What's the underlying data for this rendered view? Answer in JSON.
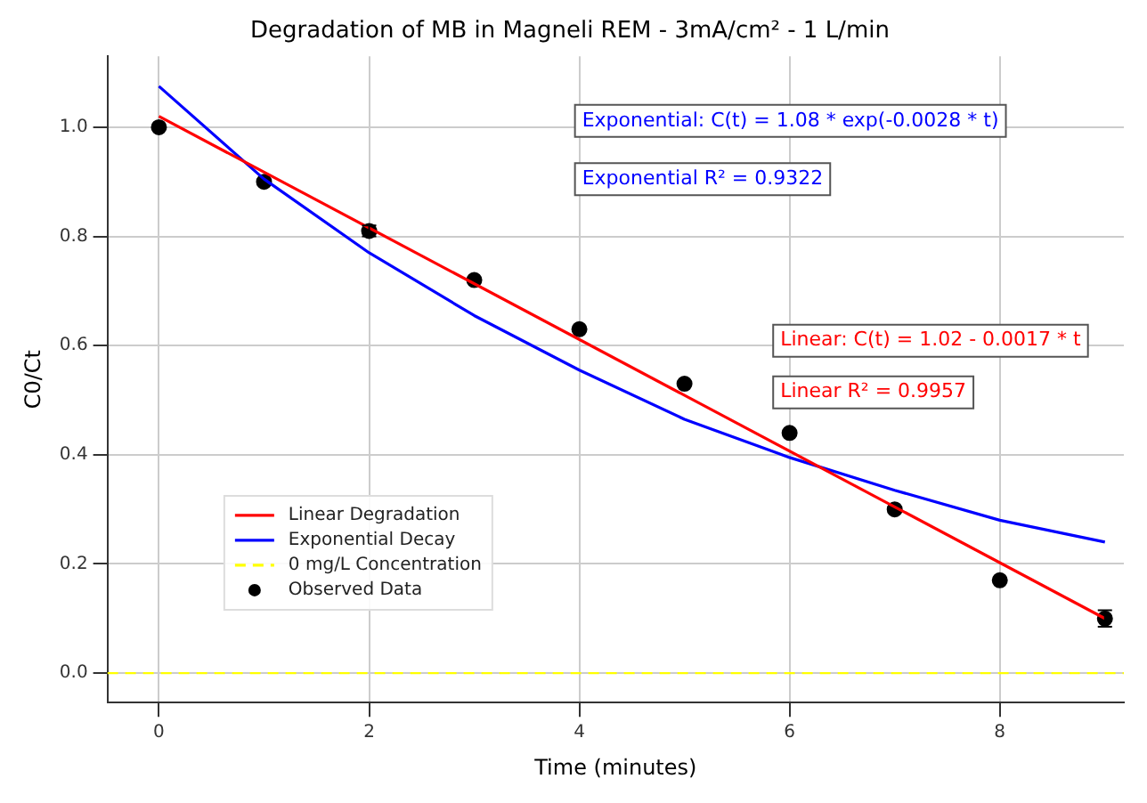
{
  "chart_data": {
    "type": "line",
    "title": "Degradation of MB in Magneli REM - 3mA/cm² - 1 L/min",
    "xlabel": "Time (minutes)",
    "ylabel": "C0/Ct",
    "xlim": [
      -0.49,
      9.18
    ],
    "ylim": [
      -0.054,
      1.13
    ],
    "xticks": [
      0,
      2,
      4,
      6,
      8
    ],
    "yticks": [
      {
        "value": 0,
        "label": "0.0"
      },
      0.2,
      0.4,
      0.6,
      0.8,
      {
        "value": 1,
        "label": "1.0"
      }
    ],
    "grid": true,
    "legend": "lower left",
    "series": [
      {
        "name": "Linear Degradation",
        "type": "line",
        "color": "#ff0000",
        "x": [
          0,
          9
        ],
        "values": [
          1.02,
          0.1
        ]
      },
      {
        "name": "Exponential Decay",
        "type": "line",
        "color": "#0000ff",
        "x": [
          0,
          1,
          2,
          3,
          4,
          5,
          6,
          7,
          8,
          9
        ],
        "values": [
          1.075,
          0.905,
          0.77,
          0.655,
          0.555,
          0.465,
          0.395,
          0.335,
          0.28,
          0.24
        ]
      },
      {
        "name": "Observed Data",
        "type": "scatter",
        "color": "#000000",
        "marker": "circle",
        "x": [
          0,
          1,
          2,
          3,
          4,
          5,
          6,
          7,
          8,
          9
        ],
        "values": [
          1.0,
          0.9,
          0.81,
          0.72,
          0.63,
          0.53,
          0.44,
          0.3,
          0.17,
          0.1
        ],
        "errors": [
          null,
          null,
          0.01,
          null,
          null,
          null,
          null,
          null,
          null,
          0.015
        ]
      }
    ],
    "ref_lines": [
      {
        "axis": "y",
        "value": 0,
        "label": "0 mg/L Concentration",
        "color": "#ffff00",
        "line_style": "dashed"
      }
    ],
    "annotations": [
      "Exponential: C(t) = 1.08 * exp(-0.0028 * t)",
      "Exponential R² = 0.9322",
      "Linear: C(t) = 1.02 - 0.0017 * t",
      "Linear R² = 0.9957"
    ]
  }
}
